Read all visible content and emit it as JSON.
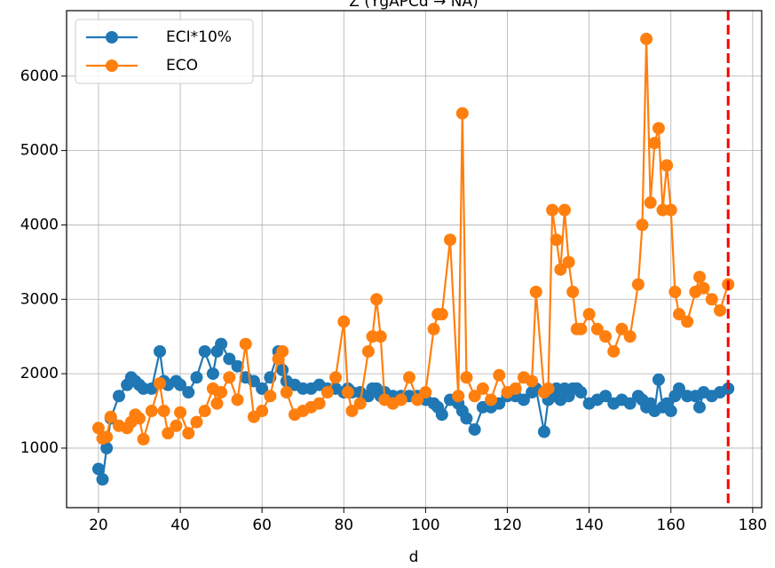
{
  "chart_data": {
    "type": "line",
    "title": "Z (YgAPCd → NA)",
    "x_label": "d",
    "x": [
      20,
      21,
      22,
      23,
      25,
      27,
      28,
      29,
      30,
      31,
      33,
      35,
      36,
      37,
      39,
      40,
      42,
      44,
      46,
      48,
      49,
      50,
      52,
      54,
      56,
      58,
      60,
      62,
      64,
      65,
      66,
      68,
      70,
      72,
      74,
      76,
      78,
      80,
      81,
      82,
      84,
      86,
      87,
      88,
      89,
      90,
      92,
      94,
      96,
      98,
      100,
      102,
      103,
      104,
      106,
      108,
      109,
      110,
      112,
      114,
      116,
      118,
      120,
      122,
      124,
      126,
      127,
      129,
      130,
      131,
      132,
      133,
      134,
      135,
      136,
      137,
      138,
      140,
      142,
      144,
      146,
      148,
      150,
      152,
      153,
      154,
      155,
      156,
      157,
      158,
      159,
      160,
      161,
      162,
      164,
      166,
      167,
      168,
      170,
      172,
      174
    ],
    "series": [
      {
        "name": "ECI*10%",
        "color": "#1f77b4",
        "values": [
          720,
          580,
          1000,
          1400,
          1700,
          1850,
          1950,
          1900,
          1850,
          1800,
          1800,
          2300,
          1900,
          1850,
          1900,
          1850,
          1750,
          1950,
          2300,
          2000,
          2300,
          2400,
          2200,
          2100,
          1950,
          1900,
          1800,
          1950,
          2300,
          2050,
          1900,
          1850,
          1800,
          1800,
          1850,
          1800,
          1800,
          1750,
          1800,
          1750,
          1750,
          1700,
          1800,
          1800,
          1700,
          1750,
          1700,
          1700,
          1700,
          1700,
          1650,
          1600,
          1550,
          1450,
          1650,
          1600,
          1500,
          1400,
          1250,
          1550,
          1550,
          1600,
          1700,
          1700,
          1650,
          1750,
          1800,
          1220,
          1650,
          1700,
          1800,
          1650,
          1800,
          1700,
          1800,
          1800,
          1750,
          1600,
          1650,
          1700,
          1600,
          1650,
          1600,
          1700,
          1650,
          1550,
          1600,
          1500,
          1920,
          1550,
          1600,
          1500,
          1700,
          1800,
          1700,
          1700,
          1550,
          1750,
          1700,
          1750,
          1800
        ]
      },
      {
        "name": "ECO",
        "color": "#ff7f0e",
        "values": [
          1270,
          1130,
          1150,
          1420,
          1300,
          1270,
          1350,
          1450,
          1400,
          1120,
          1500,
          1870,
          1500,
          1200,
          1300,
          1480,
          1200,
          1350,
          1500,
          1800,
          1600,
          1750,
          1950,
          1650,
          2400,
          1420,
          1500,
          1700,
          2200,
          2300,
          1750,
          1450,
          1500,
          1550,
          1600,
          1750,
          1950,
          2700,
          1750,
          1500,
          1600,
          2300,
          2500,
          3000,
          2500,
          1650,
          1600,
          1650,
          1950,
          1650,
          1750,
          2600,
          2800,
          2800,
          3800,
          1700,
          5500,
          1950,
          1700,
          1800,
          1650,
          1980,
          1750,
          1800,
          1950,
          1900,
          3100,
          1750,
          1800,
          4200,
          3800,
          3400,
          4200,
          3500,
          3100,
          2600,
          2600,
          2800,
          2600,
          2500,
          2300,
          2600,
          2500,
          3200,
          4000,
          6500,
          4300,
          5100,
          5300,
          4200,
          4800,
          4200,
          3100,
          2800,
          2700,
          3100,
          3300,
          3150,
          3000,
          2850,
          3200
        ]
      }
    ],
    "vline": {
      "x": 174,
      "color": "#ff0000"
    },
    "xlim": [
      12.2,
      182.2
    ],
    "xticks": [
      20,
      40,
      60,
      80,
      100,
      120,
      140,
      160,
      180
    ],
    "ylim": [
      200,
      6880
    ],
    "yticks": [
      1000,
      2000,
      3000,
      4000,
      5000,
      6000
    ],
    "grid": true,
    "legend": "upper left"
  }
}
